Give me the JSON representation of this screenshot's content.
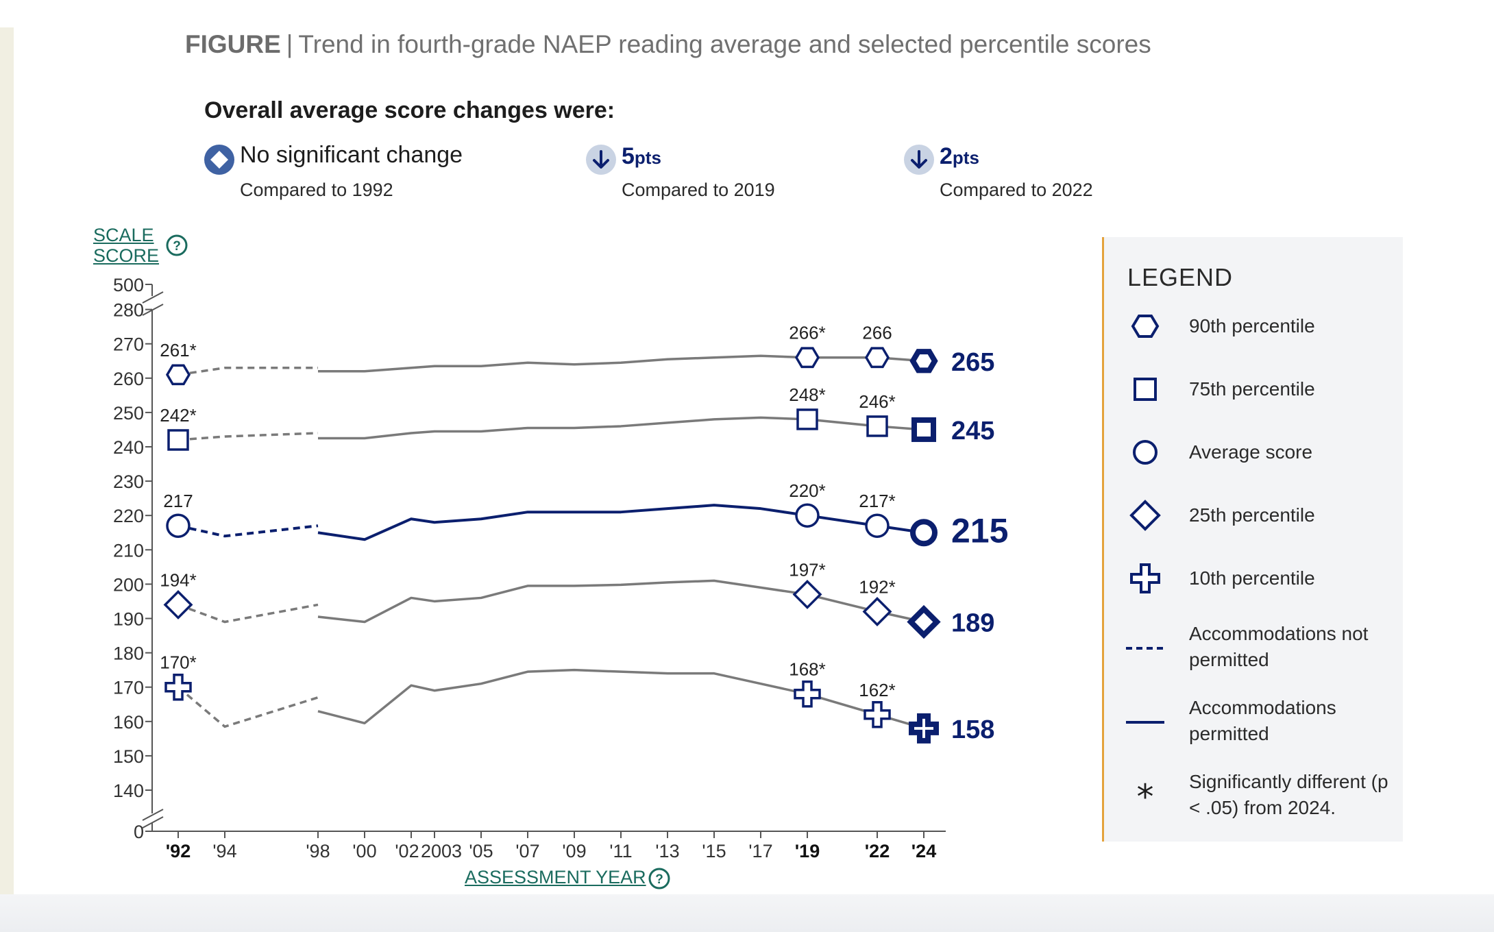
{
  "figure": {
    "tag": "FIGURE",
    "separator": "|",
    "title": "Trend in fourth-grade NAEP reading average and selected percentile scores"
  },
  "changes": {
    "heading": "Overall average score changes were:",
    "items": [
      {
        "icon": "diamond-no-change-icon",
        "text": "No significant change",
        "compare": "Compared to 1992"
      },
      {
        "icon": "down-arrow-icon",
        "value": "5",
        "unit": "pts",
        "compare": "Compared to 2019"
      },
      {
        "icon": "down-arrow-icon",
        "value": "2",
        "unit": "pts",
        "compare": "Compared to 2022"
      }
    ]
  },
  "axes": {
    "y_title_line1": "SCALE",
    "y_title_line2": "SCORE",
    "x_title": "ASSESSMENT YEAR"
  },
  "legend": {
    "title": "LEGEND",
    "items": [
      {
        "symbol": "hexagon",
        "label": "90th percentile"
      },
      {
        "symbol": "square",
        "label": "75th percentile"
      },
      {
        "symbol": "circle",
        "label": "Average score"
      },
      {
        "symbol": "diamond",
        "label": "25th percentile"
      },
      {
        "symbol": "plus",
        "label": "10th percentile"
      },
      {
        "symbol": "dashed-line",
        "label": "Accommodations not permitted"
      },
      {
        "symbol": "solid-line",
        "label": "Accommodations permitted"
      },
      {
        "symbol": "asterisk",
        "label": "Significantly different (p < .05) from 2024."
      }
    ]
  },
  "colors": {
    "navy": "#0b1f6e",
    "gray_line": "#7a7a7a",
    "teal_link": "#1a6b5e",
    "legend_border": "#e4a23c",
    "badge_bg": "#c9d3e3",
    "badge_diamond": "#3f62a3"
  },
  "chart_data": {
    "type": "line",
    "y_ticks": [
      0,
      140,
      150,
      160,
      170,
      180,
      190,
      200,
      210,
      220,
      230,
      240,
      250,
      260,
      270,
      280,
      500
    ],
    "y_break": {
      "lower": [
        0,
        140
      ],
      "upper": [
        280,
        500
      ]
    },
    "x_ticks": [
      "'92",
      "'94",
      "'98",
      "'00",
      "'02",
      "2003",
      "'05",
      "'07",
      "'09",
      "'11",
      "'13",
      "'15",
      "'17",
      "'19",
      "'22",
      "'24"
    ],
    "x_tick_years": [
      1992,
      1994,
      1998,
      2000,
      2002,
      2003,
      2005,
      2007,
      2009,
      2011,
      2013,
      2015,
      2017,
      2019,
      2022,
      2024
    ],
    "bold_years": [
      1992,
      2019,
      2022,
      2024
    ],
    "series": [
      {
        "name": "90th percentile",
        "symbol": "hexagon",
        "final_label": "265",
        "dashed": [
          [
            1992,
            261
          ],
          [
            1994,
            263
          ],
          [
            1998,
            263
          ]
        ],
        "solid": [
          [
            1998,
            262
          ],
          [
            2000,
            262
          ],
          [
            2002,
            263
          ],
          [
            2003,
            263.5
          ],
          [
            2005,
            263.5
          ],
          [
            2007,
            264.5
          ],
          [
            2009,
            264
          ],
          [
            2011,
            264.5
          ],
          [
            2013,
            265.5
          ],
          [
            2015,
            266
          ],
          [
            2017,
            266.5
          ],
          [
            2019,
            266
          ],
          [
            2022,
            266
          ],
          [
            2024,
            265
          ]
        ],
        "markers": [
          [
            1992,
            261,
            "261*"
          ],
          [
            2019,
            266,
            "266*"
          ],
          [
            2022,
            266,
            "266"
          ],
          [
            2024,
            265,
            null
          ]
        ]
      },
      {
        "name": "75th percentile",
        "symbol": "square",
        "final_label": "245",
        "dashed": [
          [
            1992,
            242
          ],
          [
            1994,
            243
          ],
          [
            1998,
            244
          ]
        ],
        "solid": [
          [
            1998,
            242.5
          ],
          [
            2000,
            242.5
          ],
          [
            2002,
            244
          ],
          [
            2003,
            244.5
          ],
          [
            2005,
            244.5
          ],
          [
            2007,
            245.5
          ],
          [
            2009,
            245.5
          ],
          [
            2011,
            246
          ],
          [
            2013,
            247
          ],
          [
            2015,
            248
          ],
          [
            2017,
            248.5
          ],
          [
            2019,
            248
          ],
          [
            2022,
            246
          ],
          [
            2024,
            245
          ]
        ],
        "markers": [
          [
            1992,
            242,
            "242*"
          ],
          [
            2019,
            248,
            "248*"
          ],
          [
            2022,
            246,
            "246*"
          ],
          [
            2024,
            245,
            null
          ]
        ]
      },
      {
        "name": "Average score",
        "symbol": "circle",
        "final_label": "215",
        "dashed": [
          [
            1992,
            217
          ],
          [
            1994,
            214
          ],
          [
            1998,
            217
          ]
        ],
        "solid": [
          [
            1998,
            215
          ],
          [
            2000,
            213
          ],
          [
            2002,
            219
          ],
          [
            2003,
            218
          ],
          [
            2005,
            219
          ],
          [
            2007,
            221
          ],
          [
            2009,
            221
          ],
          [
            2011,
            221
          ],
          [
            2013,
            222
          ],
          [
            2015,
            223
          ],
          [
            2017,
            222
          ],
          [
            2019,
            220
          ],
          [
            2022,
            217
          ],
          [
            2024,
            215
          ]
        ],
        "markers": [
          [
            1992,
            217,
            "217"
          ],
          [
            2019,
            220,
            "220*"
          ],
          [
            2022,
            217,
            "217*"
          ],
          [
            2024,
            215,
            null
          ]
        ]
      },
      {
        "name": "25th percentile",
        "symbol": "diamond",
        "final_label": "189",
        "dashed": [
          [
            1992,
            194
          ],
          [
            1994,
            189
          ],
          [
            1998,
            194
          ]
        ],
        "solid": [
          [
            1998,
            190.5
          ],
          [
            2000,
            189
          ],
          [
            2002,
            196
          ],
          [
            2003,
            195
          ],
          [
            2005,
            196
          ],
          [
            2007,
            199.5
          ],
          [
            2009,
            199.5
          ],
          [
            2011,
            199.8
          ],
          [
            2013,
            200.5
          ],
          [
            2015,
            201
          ],
          [
            2017,
            199
          ],
          [
            2019,
            197
          ],
          [
            2022,
            192
          ],
          [
            2024,
            189
          ]
        ],
        "markers": [
          [
            1992,
            194,
            "194*"
          ],
          [
            2019,
            197,
            "197*"
          ],
          [
            2022,
            192,
            "192*"
          ],
          [
            2024,
            189,
            null
          ]
        ]
      },
      {
        "name": "10th percentile",
        "symbol": "plus",
        "final_label": "158",
        "dashed": [
          [
            1992,
            170
          ],
          [
            1994,
            158.5
          ],
          [
            1998,
            167
          ]
        ],
        "solid": [
          [
            1998,
            163
          ],
          [
            2000,
            159.5
          ],
          [
            2002,
            170.5
          ],
          [
            2003,
            169
          ],
          [
            2005,
            171
          ],
          [
            2007,
            174.5
          ],
          [
            2009,
            175
          ],
          [
            2011,
            174.5
          ],
          [
            2013,
            174
          ],
          [
            2015,
            174
          ],
          [
            2017,
            171
          ],
          [
            2019,
            168
          ],
          [
            2022,
            162
          ],
          [
            2024,
            158
          ]
        ],
        "markers": [
          [
            1992,
            170,
            "170*"
          ],
          [
            2019,
            168,
            "168*"
          ],
          [
            2022,
            162,
            "162*"
          ],
          [
            2024,
            158,
            null
          ]
        ]
      }
    ]
  }
}
